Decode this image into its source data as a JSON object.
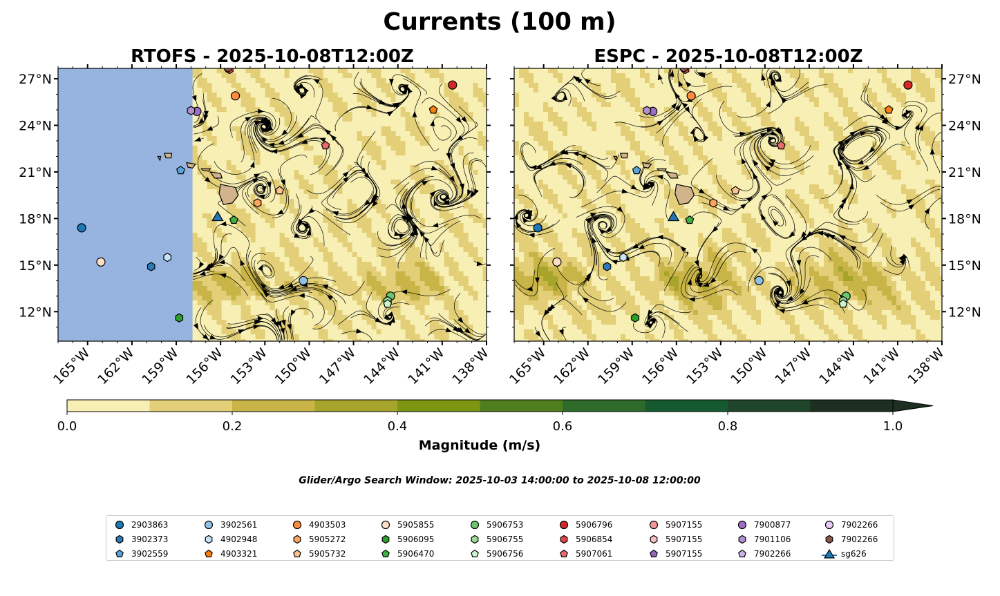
{
  "figure": {
    "title": "Currents (100 m)",
    "search_window": "Glider/Argo Search Window: 2025-10-03 14:00:00 to 2025-10-08 12:00:00"
  },
  "panels": [
    {
      "title": "RTOFS - 2025-10-08T12:00Z",
      "model_domain_west_lon": -157.9
    },
    {
      "title": "ESPC - 2025-10-08T12:00Z"
    }
  ],
  "map": {
    "lon_range": [
      -167,
      -138
    ],
    "lat_range": [
      10.1,
      27.67
    ],
    "lon_ticks": [
      -165,
      -162,
      -159,
      -156,
      -153,
      -150,
      -147,
      -144,
      -141,
      -138
    ],
    "lon_labels": [
      "165°W",
      "162°W",
      "159°W",
      "156°W",
      "153°W",
      "150°W",
      "147°W",
      "144°W",
      "141°W",
      "138°W"
    ],
    "lat_ticks": [
      12,
      15,
      18,
      21,
      24,
      27
    ],
    "lat_labels": [
      "12°N",
      "15°N",
      "18°N",
      "21°N",
      "24°N",
      "27°N"
    ],
    "ocean_color": "#97b4e0",
    "land_color": "#d2b48c"
  },
  "colorbar": {
    "label": "Magnitude (m/s)",
    "ticks": [
      0.0,
      0.2,
      0.4,
      0.6,
      0.8,
      1.0
    ],
    "tick_labels": [
      "0.0",
      "0.2",
      "0.4",
      "0.6",
      "0.8",
      "1.0"
    ],
    "colors": [
      "#f7efb4",
      "#e2cf78",
      "#c8b447",
      "#a6a42a",
      "#7d9612",
      "#4f7f1c",
      "#2e6b2a",
      "#155a31",
      "#1f452b",
      "#1c2f22"
    ],
    "extend": "max"
  },
  "legend": [
    {
      "label": "2903863",
      "shape": "circle",
      "color": "#1f77b4",
      "lon": -165.4,
      "lat": 17.4
    },
    {
      "label": "3902373",
      "shape": "hexagon",
      "color": "#2b7bba",
      "lon": -160.7,
      "lat": 14.9
    },
    {
      "label": "3902559",
      "shape": "pentagon",
      "color": "#5ba3d9",
      "lon": -158.7,
      "lat": 21.1
    },
    {
      "label": "3902561",
      "shape": "circle",
      "color": "#8fc1e6",
      "lon": -150.4,
      "lat": 14.0
    },
    {
      "label": "4902948",
      "shape": "hexagon",
      "color": "#c6e2f7",
      "lon": -159.6,
      "lat": 15.5
    },
    {
      "label": "4903321",
      "shape": "pentagon",
      "color": "#ff7f0e",
      "lon": -141.6,
      "lat": 25.0
    },
    {
      "label": "4903503",
      "shape": "circle",
      "color": "#fd8d3c",
      "lon": -155.0,
      "lat": 25.9
    },
    {
      "label": "5905272",
      "shape": "hexagon",
      "color": "#fda55e",
      "lon": -153.5,
      "lat": 19.0
    },
    {
      "label": "5905732",
      "shape": "pentagon",
      "color": "#fdc28f",
      "lon": -152.0,
      "lat": 19.8
    },
    {
      "label": "5905855",
      "shape": "circle",
      "color": "#fde0c5",
      "lon": -164.1,
      "lat": 15.2
    },
    {
      "label": "5906095",
      "shape": "hexagon",
      "color": "#2ca02c",
      "lon": -158.8,
      "lat": 11.6
    },
    {
      "label": "5906470",
      "shape": "pentagon",
      "color": "#43b043",
      "lon": -155.1,
      "lat": 17.9
    },
    {
      "label": "5906753",
      "shape": "circle",
      "color": "#6cc76c",
      "lon": -144.5,
      "lat": 13.0
    },
    {
      "label": "5906755",
      "shape": "hexagon",
      "color": "#98dc98",
      "lon": -144.7,
      "lat": 12.7
    },
    {
      "label": "5906756",
      "shape": "pentagon",
      "color": "#ccf5cc",
      "lon": -144.7,
      "lat": 12.5
    },
    {
      "label": "5906796",
      "shape": "circle",
      "color": "#d62728",
      "lon": -140.3,
      "lat": 26.6
    },
    {
      "label": "5906854",
      "shape": "hexagon",
      "color": "#e04444",
      "lon": -155.4,
      "lat": 27.6
    },
    {
      "label": "5907061",
      "shape": "pentagon",
      "color": "#ea6b6b",
      "lon": -148.9,
      "lat": 22.7
    },
    {
      "label": "5907155",
      "shape": "circle",
      "color": "#f29898",
      "lon": null,
      "lat": null
    },
    {
      "label": "5907155",
      "shape": "hexagon",
      "color": "#f9c0c0",
      "lon": null,
      "lat": null
    },
    {
      "label": "5907155",
      "shape": "pentagon",
      "color": "#9467bd",
      "lon": null,
      "lat": null
    },
    {
      "label": "7900877",
      "shape": "circle",
      "color": "#9b70c4",
      "lon": -157.6,
      "lat": 24.9
    },
    {
      "label": "7901106",
      "shape": "hexagon",
      "color": "#b08fd3",
      "lon": -158.0,
      "lat": 24.95
    },
    {
      "label": "7902266",
      "shape": "pentagon",
      "color": "#c9b3e6",
      "lon": null,
      "lat": null
    },
    {
      "label": "7902266",
      "shape": "circle",
      "color": "#e6ccf7",
      "lon": null,
      "lat": null
    },
    {
      "label": "7902266",
      "shape": "hexagon",
      "color": "#8c564b",
      "lon": -155.5,
      "lat": 27.7
    },
    {
      "label": "sg626",
      "shape": "triangle",
      "color": "#1f77b4",
      "lon": -156.2,
      "lat": 18.1
    }
  ],
  "islands": [
    [
      [
        -156.0,
        20.2
      ],
      [
        -155.0,
        20.0
      ],
      [
        -154.8,
        19.5
      ],
      [
        -155.2,
        19.0
      ],
      [
        -155.8,
        18.9
      ],
      [
        -156.1,
        19.6
      ]
    ],
    [
      [
        -156.7,
        21.0
      ],
      [
        -156.0,
        20.9
      ],
      [
        -155.9,
        20.6
      ],
      [
        -156.4,
        20.6
      ]
    ],
    [
      [
        -157.3,
        21.2
      ],
      [
        -156.7,
        21.2
      ],
      [
        -156.8,
        21.05
      ],
      [
        -157.2,
        21.1
      ]
    ],
    [
      [
        -158.3,
        21.6
      ],
      [
        -157.7,
        21.5
      ],
      [
        -157.9,
        21.25
      ],
      [
        -158.2,
        21.3
      ]
    ],
    [
      [
        -159.8,
        22.2
      ],
      [
        -159.3,
        22.2
      ],
      [
        -159.35,
        21.9
      ],
      [
        -159.7,
        21.9
      ]
    ],
    [
      [
        -160.25,
        22.0
      ],
      [
        -160.05,
        22.0
      ],
      [
        -160.1,
        21.75
      ]
    ]
  ]
}
